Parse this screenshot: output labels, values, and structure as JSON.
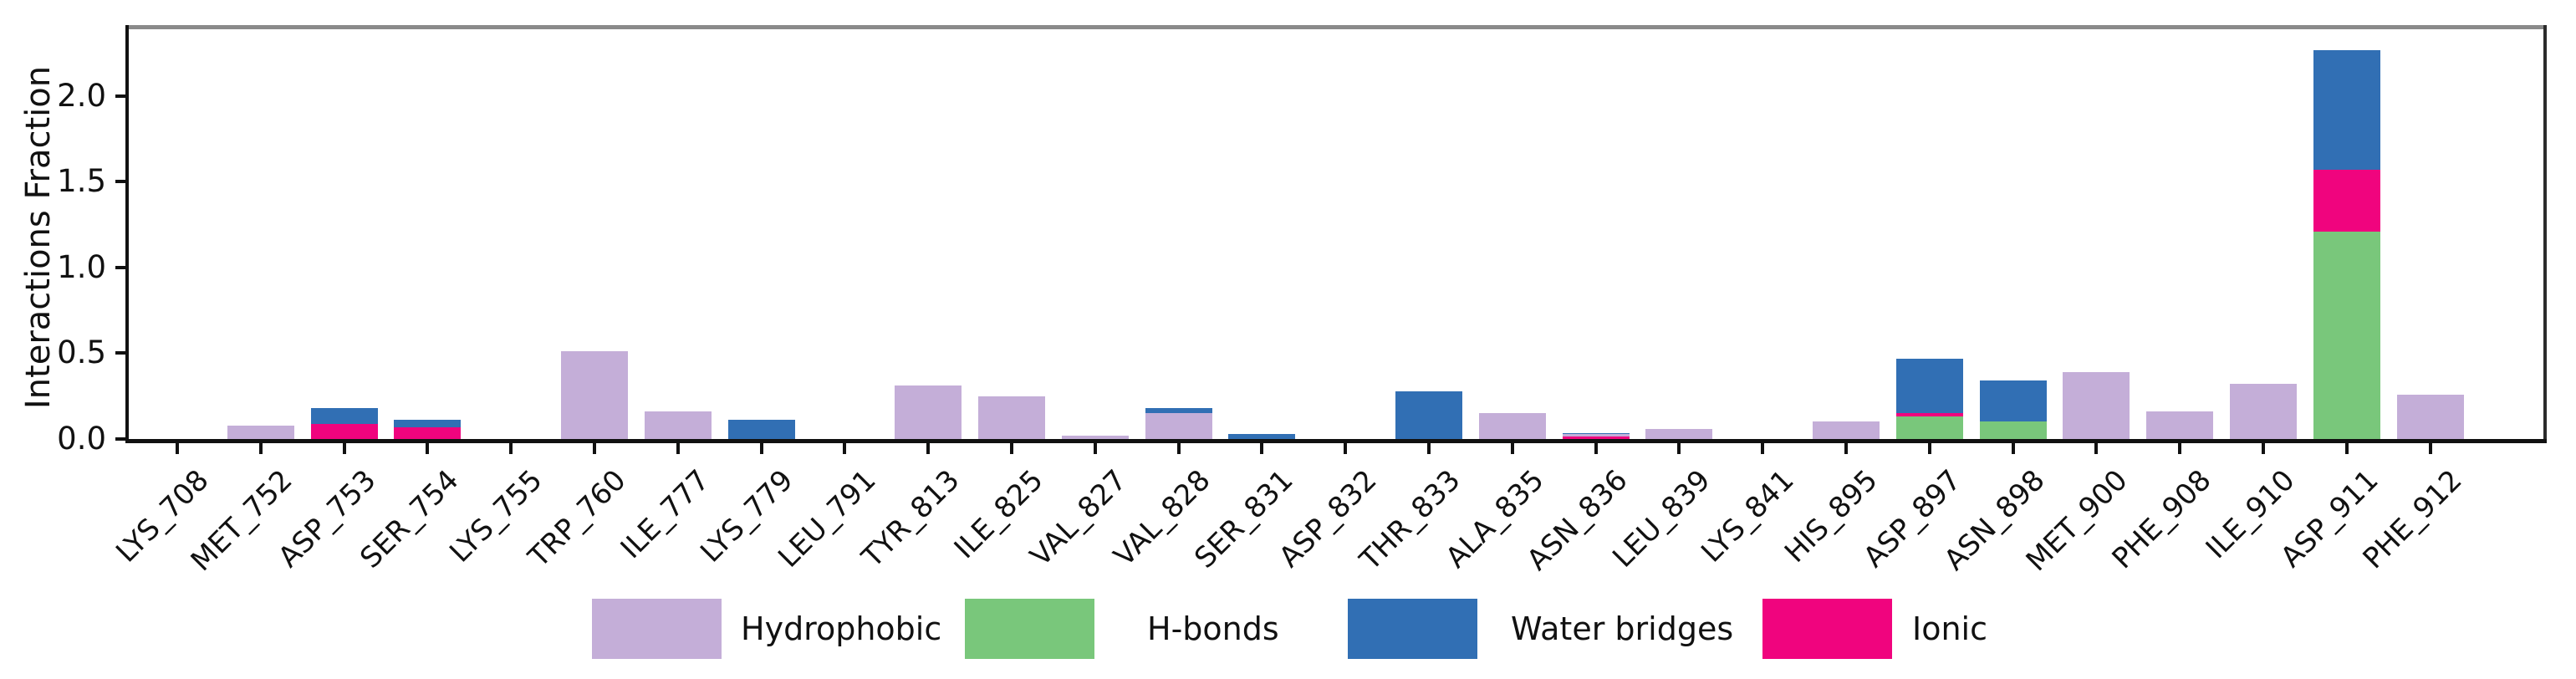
{
  "chart_data": {
    "type": "bar",
    "stacked": true,
    "title": "",
    "xlabel": "",
    "ylabel": "Interactions Fraction",
    "ylim": [
      0,
      2.39
    ],
    "yticks": [
      "0.0",
      "0.5",
      "1.0",
      "1.5",
      "2.0"
    ],
    "grid": false,
    "legend_position": "bottom",
    "categories": [
      "LYS_708",
      "MET_752",
      "ASP_753",
      "SER_754",
      "LYS_755",
      "TRP_760",
      "ILE_777",
      "LYS_779",
      "LEU_791",
      "TYR_813",
      "ILE_825",
      "VAL_827",
      "VAL_828",
      "SER_831",
      "ASP_832",
      "THR_833",
      "ALA_835",
      "ASN_836",
      "LEU_839",
      "LYS_841",
      "HIS_895",
      "ASP_897",
      "ASN_898",
      "MET_900",
      "PHE_908",
      "ILE_910",
      "ASP_911",
      "PHE_912"
    ],
    "stack_order": [
      "H-bonds",
      "Ionic",
      "Hydrophobic",
      "Water bridges"
    ],
    "series": [
      {
        "name": "Hydrophobic",
        "color": "#c4aed8",
        "values": [
          0,
          0.08,
          0,
          0,
          0,
          0.51,
          0.16,
          0,
          0,
          0.31,
          0.25,
          0.02,
          0.15,
          0,
          0,
          0,
          0.15,
          0.015,
          0.06,
          0,
          0.1,
          0,
          0,
          0.39,
          0.16,
          0.32,
          0,
          0.26
        ]
      },
      {
        "name": "H-bonds",
        "color": "#79c77b",
        "values": [
          0,
          0,
          0,
          0,
          0,
          0,
          0,
          0,
          0,
          0,
          0,
          0,
          0,
          0,
          0,
          0,
          0,
          0,
          0,
          0,
          0,
          0.13,
          0.1,
          0,
          0,
          0,
          1.21,
          0
        ]
      },
      {
        "name": "Water bridges",
        "color": "#316fb4",
        "values": [
          0,
          0,
          0.09,
          0.04,
          0,
          0,
          0,
          0.11,
          0,
          0,
          0,
          0,
          0.03,
          0.03,
          0,
          0.28,
          0,
          0.005,
          0,
          0,
          0,
          0.32,
          0.24,
          0,
          0,
          0,
          0.7,
          0
        ]
      },
      {
        "name": "Ionic",
        "color": "#f0047e",
        "values": [
          0,
          0,
          0.09,
          0.07,
          0,
          0,
          0,
          0,
          0,
          0,
          0,
          0,
          0,
          0,
          0,
          0,
          0,
          0.015,
          0,
          0,
          0,
          0.02,
          0,
          0,
          0,
          0,
          0.36,
          0
        ]
      }
    ],
    "legend": {
      "entries": [
        {
          "label": "Hydrophobic",
          "color": "#c4aed8"
        },
        {
          "label": "H-bonds",
          "color": "#79c77b"
        },
        {
          "label": "Water bridges",
          "color": "#316fb4"
        },
        {
          "label": "Ionic",
          "color": "#f0047e"
        }
      ]
    },
    "frame_colors": {
      "top_spine": "#8a8a8a",
      "left_spine": "#111111",
      "bottom_spine": "#111111",
      "right_spine": "#2b2b2b"
    }
  }
}
